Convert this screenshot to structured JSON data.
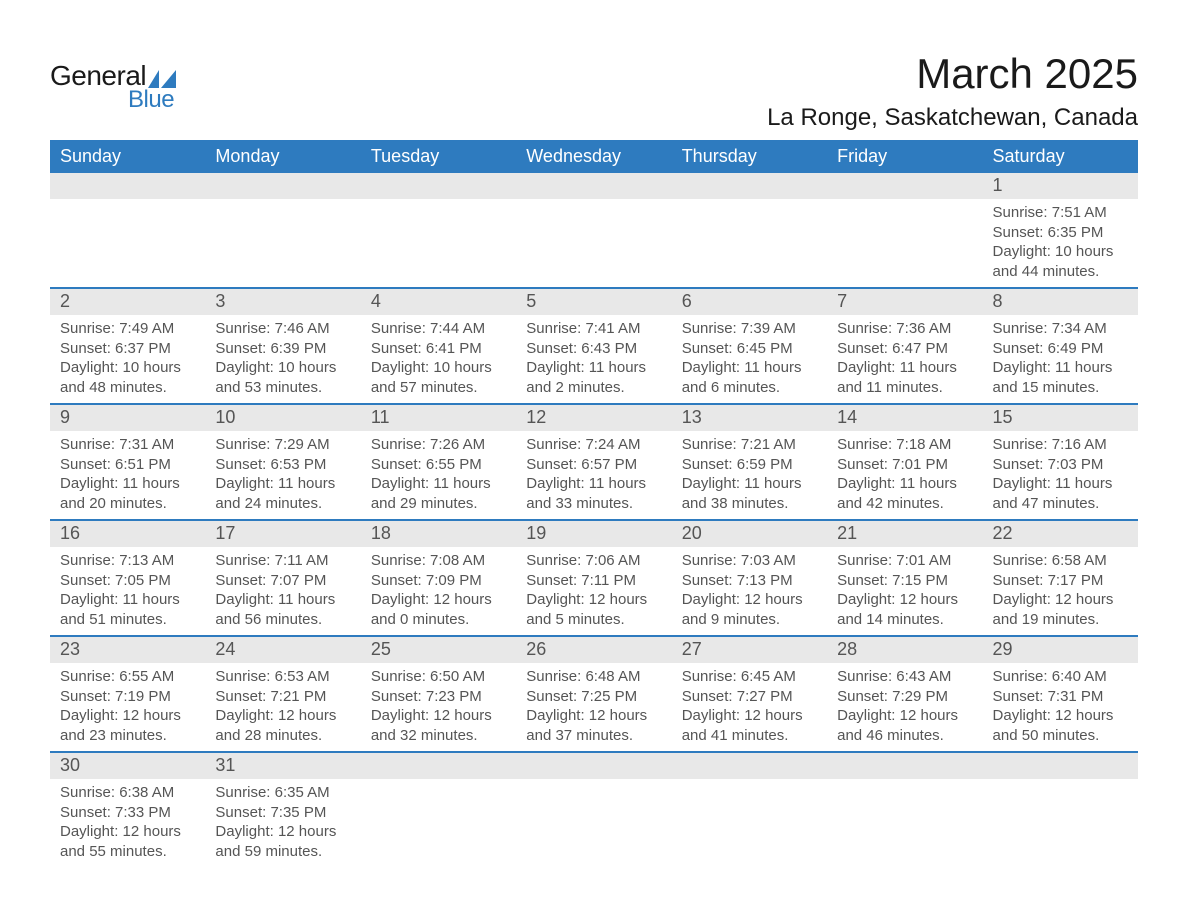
{
  "brand": {
    "word1": "General",
    "word2": "Blue",
    "logo_color": "#2e7bbf"
  },
  "title": "March 2025",
  "location": "La Ronge, Saskatchewan, Canada",
  "colors": {
    "header_bg": "#2e7bbf",
    "header_text": "#ffffff",
    "daynum_bg": "#e8e8e8",
    "row_border": "#2e7bbf",
    "body_text": "#555555",
    "page_bg": "#ffffff"
  },
  "fonts": {
    "title_size_pt": 32,
    "location_size_pt": 18,
    "header_size_pt": 14,
    "body_size_pt": 11
  },
  "weekdays": [
    "Sunday",
    "Monday",
    "Tuesday",
    "Wednesday",
    "Thursday",
    "Friday",
    "Saturday"
  ],
  "weeks": [
    [
      null,
      null,
      null,
      null,
      null,
      null,
      {
        "n": "1",
        "sunrise": "Sunrise: 7:51 AM",
        "sunset": "Sunset: 6:35 PM",
        "d1": "Daylight: 10 hours",
        "d2": "and 44 minutes."
      }
    ],
    [
      {
        "n": "2",
        "sunrise": "Sunrise: 7:49 AM",
        "sunset": "Sunset: 6:37 PM",
        "d1": "Daylight: 10 hours",
        "d2": "and 48 minutes."
      },
      {
        "n": "3",
        "sunrise": "Sunrise: 7:46 AM",
        "sunset": "Sunset: 6:39 PM",
        "d1": "Daylight: 10 hours",
        "d2": "and 53 minutes."
      },
      {
        "n": "4",
        "sunrise": "Sunrise: 7:44 AM",
        "sunset": "Sunset: 6:41 PM",
        "d1": "Daylight: 10 hours",
        "d2": "and 57 minutes."
      },
      {
        "n": "5",
        "sunrise": "Sunrise: 7:41 AM",
        "sunset": "Sunset: 6:43 PM",
        "d1": "Daylight: 11 hours",
        "d2": "and 2 minutes."
      },
      {
        "n": "6",
        "sunrise": "Sunrise: 7:39 AM",
        "sunset": "Sunset: 6:45 PM",
        "d1": "Daylight: 11 hours",
        "d2": "and 6 minutes."
      },
      {
        "n": "7",
        "sunrise": "Sunrise: 7:36 AM",
        "sunset": "Sunset: 6:47 PM",
        "d1": "Daylight: 11 hours",
        "d2": "and 11 minutes."
      },
      {
        "n": "8",
        "sunrise": "Sunrise: 7:34 AM",
        "sunset": "Sunset: 6:49 PM",
        "d1": "Daylight: 11 hours",
        "d2": "and 15 minutes."
      }
    ],
    [
      {
        "n": "9",
        "sunrise": "Sunrise: 7:31 AM",
        "sunset": "Sunset: 6:51 PM",
        "d1": "Daylight: 11 hours",
        "d2": "and 20 minutes."
      },
      {
        "n": "10",
        "sunrise": "Sunrise: 7:29 AM",
        "sunset": "Sunset: 6:53 PM",
        "d1": "Daylight: 11 hours",
        "d2": "and 24 minutes."
      },
      {
        "n": "11",
        "sunrise": "Sunrise: 7:26 AM",
        "sunset": "Sunset: 6:55 PM",
        "d1": "Daylight: 11 hours",
        "d2": "and 29 minutes."
      },
      {
        "n": "12",
        "sunrise": "Sunrise: 7:24 AM",
        "sunset": "Sunset: 6:57 PM",
        "d1": "Daylight: 11 hours",
        "d2": "and 33 minutes."
      },
      {
        "n": "13",
        "sunrise": "Sunrise: 7:21 AM",
        "sunset": "Sunset: 6:59 PM",
        "d1": "Daylight: 11 hours",
        "d2": "and 38 minutes."
      },
      {
        "n": "14",
        "sunrise": "Sunrise: 7:18 AM",
        "sunset": "Sunset: 7:01 PM",
        "d1": "Daylight: 11 hours",
        "d2": "and 42 minutes."
      },
      {
        "n": "15",
        "sunrise": "Sunrise: 7:16 AM",
        "sunset": "Sunset: 7:03 PM",
        "d1": "Daylight: 11 hours",
        "d2": "and 47 minutes."
      }
    ],
    [
      {
        "n": "16",
        "sunrise": "Sunrise: 7:13 AM",
        "sunset": "Sunset: 7:05 PM",
        "d1": "Daylight: 11 hours",
        "d2": "and 51 minutes."
      },
      {
        "n": "17",
        "sunrise": "Sunrise: 7:11 AM",
        "sunset": "Sunset: 7:07 PM",
        "d1": "Daylight: 11 hours",
        "d2": "and 56 minutes."
      },
      {
        "n": "18",
        "sunrise": "Sunrise: 7:08 AM",
        "sunset": "Sunset: 7:09 PM",
        "d1": "Daylight: 12 hours",
        "d2": "and 0 minutes."
      },
      {
        "n": "19",
        "sunrise": "Sunrise: 7:06 AM",
        "sunset": "Sunset: 7:11 PM",
        "d1": "Daylight: 12 hours",
        "d2": "and 5 minutes."
      },
      {
        "n": "20",
        "sunrise": "Sunrise: 7:03 AM",
        "sunset": "Sunset: 7:13 PM",
        "d1": "Daylight: 12 hours",
        "d2": "and 9 minutes."
      },
      {
        "n": "21",
        "sunrise": "Sunrise: 7:01 AM",
        "sunset": "Sunset: 7:15 PM",
        "d1": "Daylight: 12 hours",
        "d2": "and 14 minutes."
      },
      {
        "n": "22",
        "sunrise": "Sunrise: 6:58 AM",
        "sunset": "Sunset: 7:17 PM",
        "d1": "Daylight: 12 hours",
        "d2": "and 19 minutes."
      }
    ],
    [
      {
        "n": "23",
        "sunrise": "Sunrise: 6:55 AM",
        "sunset": "Sunset: 7:19 PM",
        "d1": "Daylight: 12 hours",
        "d2": "and 23 minutes."
      },
      {
        "n": "24",
        "sunrise": "Sunrise: 6:53 AM",
        "sunset": "Sunset: 7:21 PM",
        "d1": "Daylight: 12 hours",
        "d2": "and 28 minutes."
      },
      {
        "n": "25",
        "sunrise": "Sunrise: 6:50 AM",
        "sunset": "Sunset: 7:23 PM",
        "d1": "Daylight: 12 hours",
        "d2": "and 32 minutes."
      },
      {
        "n": "26",
        "sunrise": "Sunrise: 6:48 AM",
        "sunset": "Sunset: 7:25 PM",
        "d1": "Daylight: 12 hours",
        "d2": "and 37 minutes."
      },
      {
        "n": "27",
        "sunrise": "Sunrise: 6:45 AM",
        "sunset": "Sunset: 7:27 PM",
        "d1": "Daylight: 12 hours",
        "d2": "and 41 minutes."
      },
      {
        "n": "28",
        "sunrise": "Sunrise: 6:43 AM",
        "sunset": "Sunset: 7:29 PM",
        "d1": "Daylight: 12 hours",
        "d2": "and 46 minutes."
      },
      {
        "n": "29",
        "sunrise": "Sunrise: 6:40 AM",
        "sunset": "Sunset: 7:31 PM",
        "d1": "Daylight: 12 hours",
        "d2": "and 50 minutes."
      }
    ],
    [
      {
        "n": "30",
        "sunrise": "Sunrise: 6:38 AM",
        "sunset": "Sunset: 7:33 PM",
        "d1": "Daylight: 12 hours",
        "d2": "and 55 minutes."
      },
      {
        "n": "31",
        "sunrise": "Sunrise: 6:35 AM",
        "sunset": "Sunset: 7:35 PM",
        "d1": "Daylight: 12 hours",
        "d2": "and 59 minutes."
      },
      null,
      null,
      null,
      null,
      null
    ]
  ]
}
